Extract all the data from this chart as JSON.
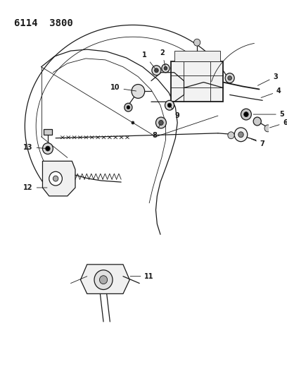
{
  "title": "6114  3800",
  "bg_color": "#ffffff",
  "line_color": "#1a1a1a",
  "lw_main": 0.9,
  "lw_thin": 0.6,
  "lw_thick": 1.3,
  "label_fs": 7.0,
  "figw": 4.08,
  "figh": 5.33,
  "dpi": 100
}
